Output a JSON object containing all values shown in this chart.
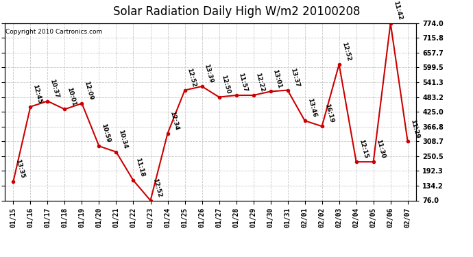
{
  "title": "Solar Radiation Daily High W/m2 20100208",
  "copyright": "Copyright 2010 Cartronics.com",
  "dates": [
    "01/15",
    "01/16",
    "01/17",
    "01/18",
    "01/19",
    "01/20",
    "01/21",
    "01/22",
    "01/23",
    "01/24",
    "01/25",
    "01/26",
    "01/27",
    "01/28",
    "01/29",
    "01/30",
    "01/31",
    "02/01",
    "02/02",
    "02/03",
    "02/04",
    "02/05",
    "02/06",
    "02/07"
  ],
  "values": [
    151,
    445,
    467,
    435,
    458,
    290,
    267,
    155,
    76,
    340,
    510,
    525,
    483,
    490,
    490,
    505,
    510,
    390,
    368,
    612,
    228,
    228,
    774,
    308
  ],
  "time_labels": [
    "13:35",
    "12:45",
    "10:37",
    "10:01",
    "12:09",
    "10:59",
    "10:34",
    "11:18",
    "12:52",
    "12:34",
    "12:52",
    "13:39",
    "12:50",
    "11:57",
    "12:22",
    "13:01",
    "13:37",
    "13:46",
    "16:19",
    "12:52",
    "12:15",
    "11:30",
    "11:42",
    "11:29"
  ],
  "ylim_min": 76.0,
  "ylim_max": 774.0,
  "yticks": [
    76.0,
    134.2,
    192.3,
    250.5,
    308.7,
    366.8,
    425.0,
    483.2,
    541.3,
    599.5,
    657.7,
    715.8,
    774.0
  ],
  "ytick_labels": [
    "76.0",
    "134.2",
    "192.3",
    "250.5",
    "308.7",
    "366.8",
    "425.0",
    "483.2",
    "541.3",
    "599.5",
    "657.7",
    "715.8",
    "774.0"
  ],
  "line_color": "#cc0000",
  "marker_color": "#cc0000",
  "background_color": "#ffffff",
  "grid_color": "#c8c8c8",
  "title_fontsize": 12,
  "annotation_fontsize": 6.5,
  "tick_fontsize": 7
}
